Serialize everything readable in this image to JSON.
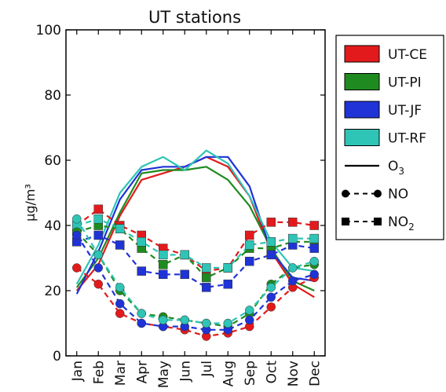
{
  "chart_data": {
    "type": "line",
    "title": "UT stations",
    "xlabel": "",
    "ylabel": "μg/m³",
    "ylim": [
      0,
      100
    ],
    "yticks": [
      0,
      20,
      40,
      60,
      80,
      100
    ],
    "categories": [
      "Jan",
      "Feb",
      "Mar",
      "Apr",
      "May",
      "Jun",
      "Jul",
      "Aug",
      "Sep",
      "Oct",
      "Nov",
      "Dec"
    ],
    "grid": false,
    "legend_position": "right",
    "legend": {
      "stations": [
        {
          "name": "UT-CE",
          "color": "#e31a1c"
        },
        {
          "name": "UT-PI",
          "color": "#1f8a1f"
        },
        {
          "name": "UT-JF",
          "color": "#1f33d6"
        },
        {
          "name": "UT-RF",
          "color": "#2ec4b6"
        }
      ],
      "styles": [
        {
          "label": "O",
          "subscript": "3",
          "style": "solid"
        },
        {
          "label": "NO",
          "subscript": "",
          "style": "dashed-circle"
        },
        {
          "label": "NO",
          "subscript": "2",
          "style": "dashed-square"
        }
      ]
    },
    "series": [
      {
        "station": "UT-CE",
        "pollutant": "O3",
        "color": "#e31a1c",
        "values": [
          20,
          28,
          43,
          54,
          56,
          58,
          61,
          58,
          49,
          32,
          22,
          18
        ]
      },
      {
        "station": "UT-PI",
        "pollutant": "O3",
        "color": "#1f8a1f",
        "values": [
          21,
          30,
          44,
          56,
          57,
          57,
          58,
          54,
          46,
          33,
          23,
          20
        ]
      },
      {
        "station": "UT-JF",
        "pollutant": "O3",
        "color": "#1f33d6",
        "values": [
          19,
          32,
          48,
          57,
          58,
          58,
          61,
          61,
          52,
          32,
          24,
          23
        ]
      },
      {
        "station": "UT-RF",
        "pollutant": "O3",
        "color": "#2ec4b6",
        "values": [
          22,
          34,
          50,
          58,
          61,
          57,
          63,
          59,
          49,
          35,
          27,
          26
        ]
      },
      {
        "station": "UT-CE",
        "pollutant": "NO",
        "color": "#e31a1c",
        "values": [
          27,
          22,
          13,
          10,
          9,
          8,
          6,
          7,
          9,
          15,
          21,
          24
        ]
      },
      {
        "station": "UT-PI",
        "pollutant": "NO",
        "color": "#1f8a1f",
        "values": [
          38,
          31,
          20,
          13,
          12,
          11,
          10,
          9,
          13,
          22,
          27,
          28
        ]
      },
      {
        "station": "UT-JF",
        "pollutant": "NO",
        "color": "#1f33d6",
        "values": [
          37,
          27,
          16,
          10,
          9,
          9,
          8,
          8,
          11,
          18,
          23,
          25
        ]
      },
      {
        "station": "UT-RF",
        "pollutant": "NO",
        "color": "#2ec4b6",
        "values": [
          42,
          31,
          21,
          13,
          11,
          11,
          10,
          10,
          14,
          21,
          27,
          29
        ]
      },
      {
        "station": "UT-CE",
        "pollutant": "NO2",
        "color": "#e31a1c",
        "values": [
          40,
          45,
          40,
          37,
          33,
          31,
          26,
          27,
          37,
          41,
          41,
          40
        ]
      },
      {
        "station": "UT-PI",
        "pollutant": "NO2",
        "color": "#1f8a1f",
        "values": [
          38,
          40,
          39,
          33,
          28,
          31,
          24,
          27,
          33,
          33,
          35,
          35
        ]
      },
      {
        "station": "UT-JF",
        "pollutant": "NO2",
        "color": "#1f33d6",
        "values": [
          35,
          37,
          34,
          26,
          25,
          25,
          21,
          22,
          29,
          31,
          34,
          33
        ]
      },
      {
        "station": "UT-RF",
        "pollutant": "NO2",
        "color": "#2ec4b6",
        "values": [
          40,
          42,
          39,
          35,
          31,
          31,
          27,
          27,
          34,
          35,
          36,
          36
        ]
      }
    ]
  }
}
